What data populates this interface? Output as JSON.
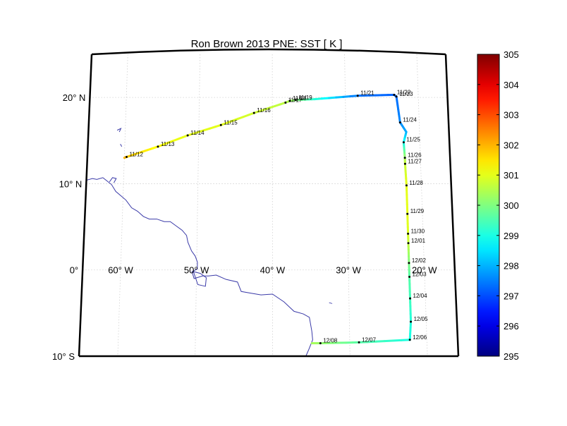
{
  "title": "Ron Brown 2013 PNE: SST [ K ]",
  "latitude_labels": [
    "20° N",
    "10° N",
    "0°",
    "10° S"
  ],
  "longitude_labels": [
    "60° W",
    "50° W",
    "40° W",
    "30° W",
    "20° W"
  ],
  "colorbar": {
    "min": 295,
    "max": 305,
    "tick_labels": [
      "305",
      "304",
      "303",
      "302",
      "301",
      "300",
      "299",
      "298",
      "297",
      "296",
      "295"
    ],
    "colormap": "jet"
  },
  "colors": {
    "coastline": "#3a3aa8",
    "grid": "#d0d0d0",
    "frame": "#000000"
  },
  "track": [
    {
      "lon": -60.0,
      "lat": 13.0,
      "sst": 302.1
    },
    {
      "lon": -59.7,
      "lat": 13.1,
      "label": "11/12",
      "sst": 301.8
    },
    {
      "lon": -55.5,
      "lat": 14.3,
      "label": "11/13",
      "sst": 301.2
    },
    {
      "lon": -51.5,
      "lat": 15.6,
      "label": "11/14",
      "sst": 301.0
    },
    {
      "lon": -47.0,
      "lat": 16.8,
      "label": "11/15",
      "sst": 301.0
    },
    {
      "lon": -42.5,
      "lat": 18.2,
      "label": "11/16",
      "sst": 300.8
    },
    {
      "lon": -38.2,
      "lat": 19.4,
      "label": "11/17",
      "sst": 300.6
    },
    {
      "lon": -37.6,
      "lat": 19.6,
      "label": "11/18",
      "sst": 300.4
    },
    {
      "lon": -36.8,
      "lat": 19.7,
      "label": "11/19",
      "sst": 300.1
    },
    {
      "lon": -34.2,
      "lat": 19.8,
      "sst": 299.2
    },
    {
      "lon": -28.3,
      "lat": 20.2,
      "label": "11/21",
      "sst": 297.4
    },
    {
      "lon": -23.3,
      "lat": 20.3,
      "label": "11/22",
      "sst": 297.2
    },
    {
      "lon": -23.0,
      "lat": 20.1,
      "label": "11/23",
      "sst": 297.3
    },
    {
      "lon": -22.6,
      "lat": 17.1,
      "label": "11/24",
      "sst": 297.6
    },
    {
      "lon": -21.8,
      "lat": 16.0,
      "sst": 297.9
    },
    {
      "lon": -22.2,
      "lat": 14.8,
      "label": "11/25",
      "sst": 298.8
    },
    {
      "lon": -22.1,
      "lat": 13.0,
      "label": "11/26",
      "sst": 300.3
    },
    {
      "lon": -22.1,
      "lat": 12.3,
      "label": "11/27",
      "sst": 300.7
    },
    {
      "lon": -22.0,
      "lat": 9.8,
      "label": "11/28",
      "sst": 301.0
    },
    {
      "lon": -22.0,
      "lat": 6.5,
      "label": "11/29",
      "sst": 301.0
    },
    {
      "lon": -22.0,
      "lat": 4.2,
      "label": "11/30",
      "sst": 300.9
    },
    {
      "lon": -22.0,
      "lat": 3.1,
      "label": "12/01",
      "sst": 300.7
    },
    {
      "lon": -22.0,
      "lat": 0.8,
      "label": "12/02",
      "sst": 300.0
    },
    {
      "lon": -22.0,
      "lat": -0.8,
      "label": "12/03",
      "sst": 299.6
    },
    {
      "lon": -22.0,
      "lat": -3.3,
      "label": "12/04",
      "sst": 299.4
    },
    {
      "lon": -22.0,
      "lat": -6.0,
      "label": "12/05",
      "sst": 299.1
    },
    {
      "lon": -22.2,
      "lat": -8.1,
      "label": "12/06",
      "sst": 299.0
    },
    {
      "lon": -28.8,
      "lat": -8.4,
      "label": "12/07",
      "sst": 299.6
    },
    {
      "lon": -33.8,
      "lat": -8.5,
      "label": "12/08",
      "sst": 300.2
    },
    {
      "lon": -34.9,
      "lat": -8.5,
      "sst": 300.4
    }
  ]
}
